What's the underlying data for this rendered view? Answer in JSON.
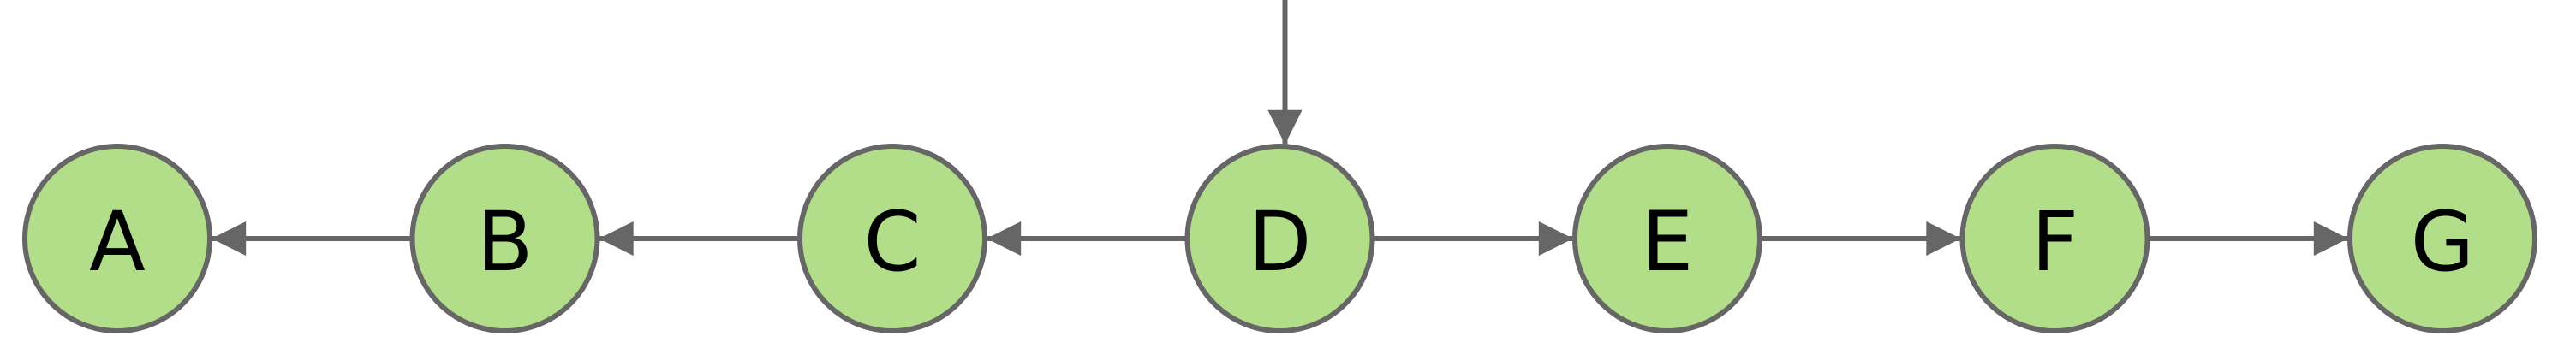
{
  "colors": {
    "node_fill": "#b2de8a",
    "node_stroke": "#666666",
    "edge": "#666666",
    "label": "#000000"
  },
  "nodes": [
    {
      "id": "A",
      "label": "A"
    },
    {
      "id": "B",
      "label": "B"
    },
    {
      "id": "C",
      "label": "C"
    },
    {
      "id": "D",
      "label": "D"
    },
    {
      "id": "E",
      "label": "E"
    },
    {
      "id": "F",
      "label": "F"
    },
    {
      "id": "G",
      "label": "G"
    }
  ],
  "edges": [
    {
      "from": "B",
      "to": "A"
    },
    {
      "from": "C",
      "to": "B"
    },
    {
      "from": "D",
      "to": "C"
    },
    {
      "from": "D",
      "to": "E"
    },
    {
      "from": "E",
      "to": "F"
    },
    {
      "from": "F",
      "to": "G"
    }
  ],
  "incoming_edge": {
    "to": "D"
  }
}
